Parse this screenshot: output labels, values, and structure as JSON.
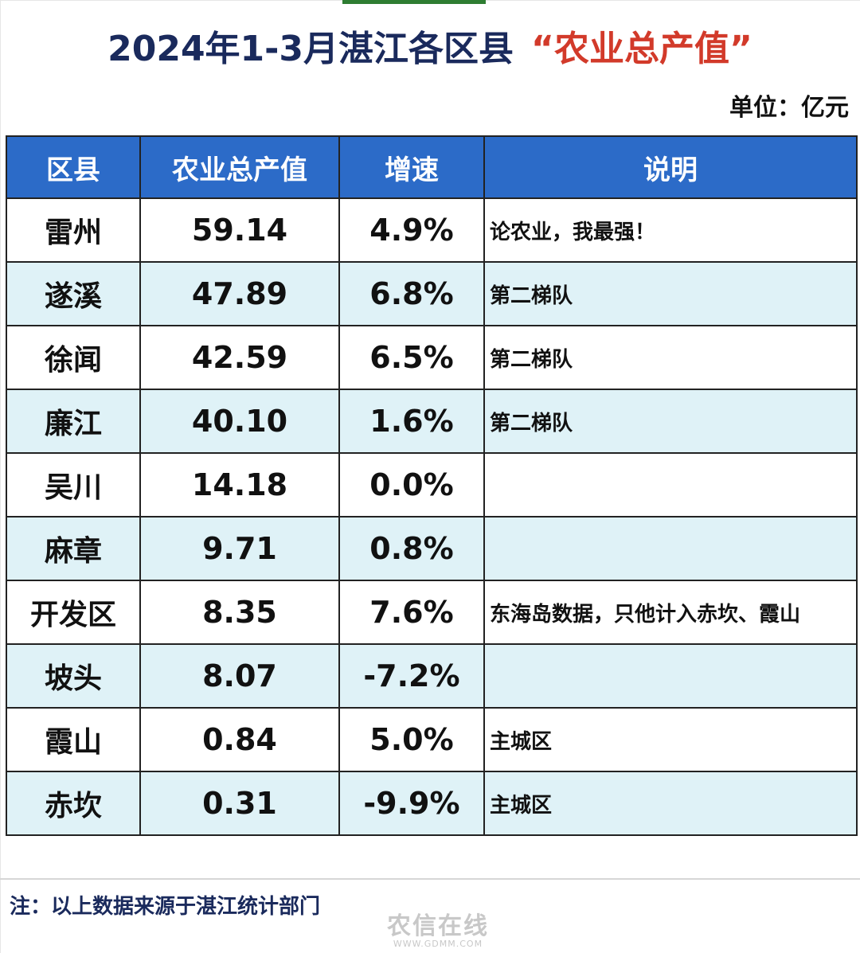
{
  "title": {
    "main": "2024年1-3月湛江各区县",
    "highlight": "“农业总产值”"
  },
  "unit": "单位：亿元",
  "table": {
    "headers": [
      "区县",
      "农业总产值",
      "增速",
      "说明"
    ],
    "rows": [
      {
        "district": "雷州",
        "value": "59.14",
        "growth": "4.9%",
        "note": "论农业，我最强！"
      },
      {
        "district": "遂溪",
        "value": "47.89",
        "growth": "6.8%",
        "note": "第二梯队"
      },
      {
        "district": "徐闻",
        "value": "42.59",
        "growth": "6.5%",
        "note": "第二梯队"
      },
      {
        "district": "廉江",
        "value": "40.10",
        "growth": "1.6%",
        "note": "第二梯队"
      },
      {
        "district": "吴川",
        "value": "14.18",
        "growth": "0.0%",
        "note": ""
      },
      {
        "district": "麻章",
        "value": "9.71",
        "growth": "0.8%",
        "note": ""
      },
      {
        "district": "开发区",
        "value": "8.35",
        "growth": "7.6%",
        "note": "东海岛数据，只他计入赤坎、霞山"
      },
      {
        "district": "坡头",
        "value": "8.07",
        "growth": "-7.2%",
        "note": ""
      },
      {
        "district": "霞山",
        "value": "0.84",
        "growth": "5.0%",
        "note": "主城区"
      },
      {
        "district": "赤坎",
        "value": "0.31",
        "growth": "-9.9%",
        "note": "主城区"
      }
    ]
  },
  "footnote": "注：以上数据来源于湛江统计部门",
  "watermark": {
    "logo": "农信在线",
    "url": "WWW.GDMM.COM"
  },
  "colors": {
    "header_bg": "#2c6bc8",
    "alt_row_bg": "#dff2f7",
    "title_text": "#1a2a5c",
    "title_highlight": "#d23a2a"
  }
}
